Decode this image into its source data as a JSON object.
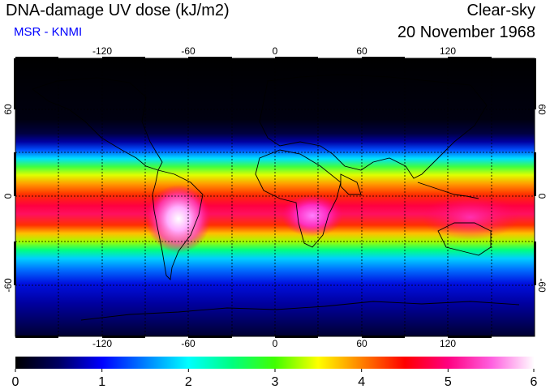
{
  "header": {
    "title": "DNA-damage UV dose (kJ/m2)",
    "source": "MSR - KNMI",
    "condition": "Clear-sky",
    "date": "20 November 1968"
  },
  "map": {
    "lon_ticks": [
      "-120",
      "-60",
      "0",
      "60",
      "120"
    ],
    "lat_ticks": [
      "60",
      "0",
      "-60"
    ]
  },
  "colorbar": {
    "labels": [
      "0",
      "1",
      "2",
      "3",
      "4",
      "5",
      "6"
    ],
    "min": 0,
    "max": 6
  },
  "colors": {
    "subtitle": "#0000ff",
    "grid": "#000000"
  }
}
